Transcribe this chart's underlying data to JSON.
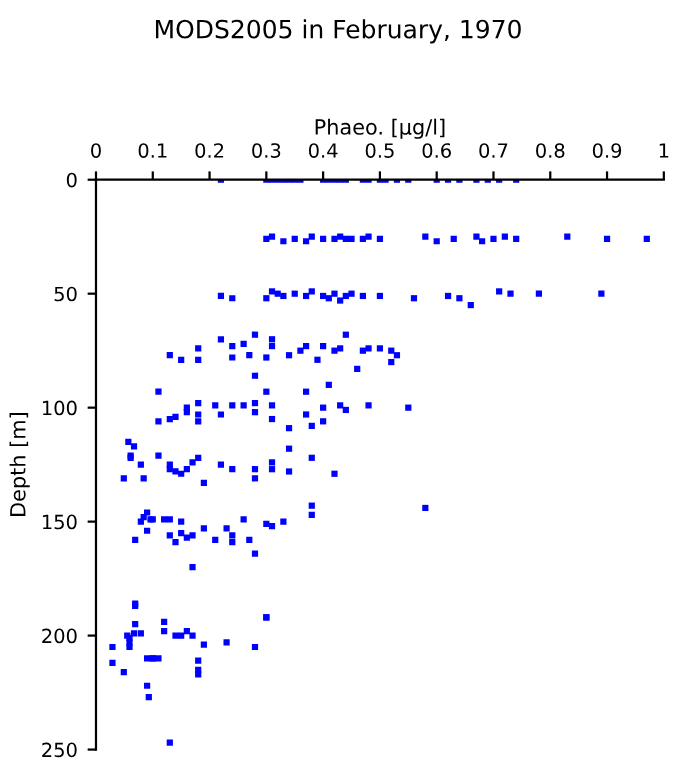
{
  "chart_data": {
    "type": "scatter",
    "title": "MODS2005 in February, 1970",
    "xlabel": "Phaeo. [µg/l]",
    "ylabel": "Depth [m]",
    "xlim": [
      0,
      1
    ],
    "xticks": [
      0,
      0.1,
      0.2,
      0.3,
      0.4,
      0.5,
      0.6,
      0.7,
      0.8,
      0.9,
      1
    ],
    "ylim": [
      250,
      0
    ],
    "yticks": [
      0,
      50,
      100,
      150,
      200,
      250
    ],
    "marker": "square",
    "grid": false,
    "legend": false,
    "series": [
      {
        "color": "#0000ff",
        "x": [
          0.22,
          0.3,
          0.31,
          0.32,
          0.33,
          0.34,
          0.35,
          0.36,
          0.4,
          0.41,
          0.42,
          0.43,
          0.44,
          0.47,
          0.48,
          0.5,
          0.51,
          0.53,
          0.55,
          0.6,
          0.62,
          0.64,
          0.67,
          0.69,
          0.71,
          0.74,
          0.3,
          0.31,
          0.33,
          0.35,
          0.37,
          0.38,
          0.4,
          0.42,
          0.43,
          0.44,
          0.45,
          0.47,
          0.48,
          0.5,
          0.58,
          0.6,
          0.63,
          0.67,
          0.68,
          0.7,
          0.72,
          0.74,
          0.83,
          0.9,
          0.97,
          0.22,
          0.24,
          0.3,
          0.31,
          0.32,
          0.33,
          0.35,
          0.37,
          0.38,
          0.4,
          0.41,
          0.42,
          0.43,
          0.44,
          0.45,
          0.47,
          0.5,
          0.56,
          0.62,
          0.64,
          0.66,
          0.71,
          0.73,
          0.78,
          0.89,
          0.13,
          0.15,
          0.18,
          0.18,
          0.22,
          0.24,
          0.24,
          0.26,
          0.27,
          0.28,
          0.3,
          0.31,
          0.31,
          0.34,
          0.36,
          0.37,
          0.39,
          0.4,
          0.42,
          0.43,
          0.44,
          0.46,
          0.47,
          0.48,
          0.5,
          0.52,
          0.53,
          0.52,
          0.28,
          0.11,
          0.11,
          0.13,
          0.14,
          0.16,
          0.16,
          0.18,
          0.18,
          0.18,
          0.21,
          0.22,
          0.24,
          0.26,
          0.28,
          0.28,
          0.3,
          0.31,
          0.31,
          0.34,
          0.34,
          0.37,
          0.37,
          0.38,
          0.4,
          0.4,
          0.41,
          0.43,
          0.44,
          0.48,
          0.55,
          0.057,
          0.061,
          0.061,
          0.067,
          0.049,
          0.079,
          0.084,
          0.11,
          0.13,
          0.13,
          0.14,
          0.15,
          0.16,
          0.17,
          0.18,
          0.19,
          0.22,
          0.24,
          0.28,
          0.28,
          0.31,
          0.31,
          0.34,
          0.38,
          0.42,
          0.069,
          0.079,
          0.084,
          0.09,
          0.09,
          0.096,
          0.1,
          0.12,
          0.13,
          0.13,
          0.14,
          0.15,
          0.15,
          0.16,
          0.17,
          0.19,
          0.21,
          0.23,
          0.24,
          0.24,
          0.26,
          0.27,
          0.28,
          0.3,
          0.31,
          0.33,
          0.38,
          0.38,
          0.58,
          0.17,
          0.3,
          0.029,
          0.029,
          0.049,
          0.055,
          0.059,
          0.059,
          0.059,
          0.067,
          0.069,
          0.069,
          0.069,
          0.079,
          0.09,
          0.09,
          0.093,
          0.1,
          0.1,
          0.11,
          0.12,
          0.14,
          0.15,
          0.16,
          0.17,
          0.18,
          0.18,
          0.18,
          0.19,
          0.23,
          0.28,
          0.3,
          0.13,
          0.12
        ],
        "values": [
          0,
          0,
          0,
          0,
          0,
          0,
          0,
          0,
          0,
          0,
          0,
          0,
          0,
          0,
          0,
          0,
          0,
          0,
          0,
          0,
          0,
          0,
          0,
          0,
          0,
          0,
          26,
          25,
          27,
          26,
          27,
          25,
          26,
          26,
          25,
          26,
          26,
          26,
          25,
          26,
          25,
          27,
          26,
          25,
          27,
          26,
          25,
          26,
          25,
          26,
          26,
          51,
          52,
          52,
          49,
          50,
          51,
          50,
          51,
          49,
          51,
          52,
          50,
          53,
          51,
          50,
          51,
          51,
          52,
          51,
          52,
          55,
          49,
          50,
          50,
          50,
          77,
          79,
          74,
          79,
          70,
          73,
          78,
          72,
          77,
          68,
          78,
          70,
          73,
          77,
          75,
          73,
          79,
          73,
          75,
          74,
          68,
          83,
          75,
          74,
          74,
          75,
          77,
          80,
          86,
          93,
          106,
          105,
          104,
          100,
          102,
          98,
          106,
          103,
          99,
          103,
          99,
          99,
          98,
          102,
          93,
          99,
          105,
          109,
          118,
          93,
          103,
          108,
          100,
          106,
          90,
          99,
          101,
          99,
          100,
          115,
          121,
          122,
          117,
          131,
          125,
          131,
          121,
          125,
          127,
          128,
          129,
          127,
          124,
          122,
          133,
          125,
          127,
          127,
          131,
          124,
          127,
          128,
          122,
          129,
          158,
          150,
          148,
          146,
          154,
          149,
          149,
          149,
          156,
          149,
          159,
          155,
          150,
          157,
          156,
          153,
          158,
          153,
          156,
          159,
          149,
          158,
          164,
          151,
          152,
          150,
          147,
          143,
          144,
          170,
          192,
          205,
          212,
          216,
          200,
          201,
          203,
          205,
          199,
          186,
          187,
          195,
          199,
          210,
          222,
          227,
          210,
          210,
          210,
          198,
          200,
          200,
          198,
          200,
          215,
          217,
          211,
          204,
          203,
          205,
          192,
          247,
          194
        ]
      }
    ]
  }
}
